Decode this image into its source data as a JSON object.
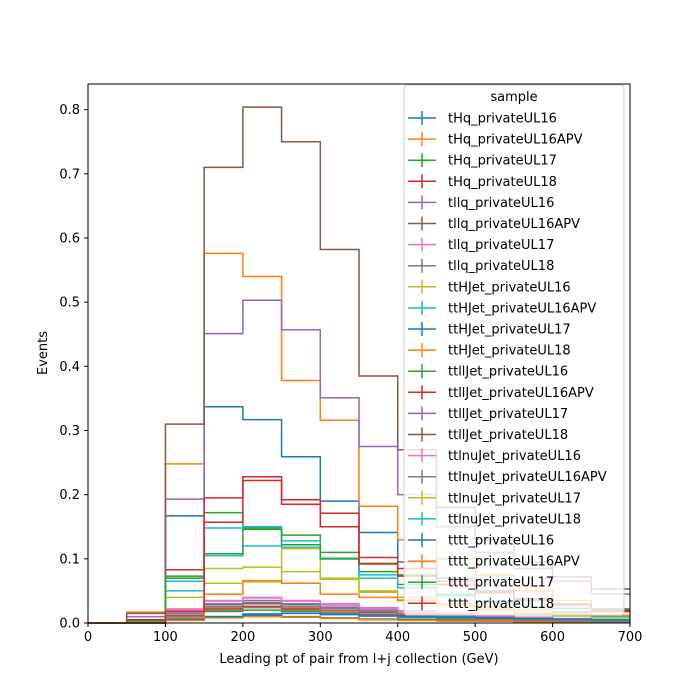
{
  "chart_data": {
    "type": "histogram-step",
    "title": "",
    "xlabel": "Leading pt of pair from l+j collection (GeV)",
    "ylabel": "Events",
    "xlim": [
      0,
      700
    ],
    "ylim": [
      0,
      0.84
    ],
    "xticks": [
      0,
      100,
      200,
      300,
      400,
      500,
      600,
      700
    ],
    "yticks": [
      0.0,
      0.1,
      0.2,
      0.3,
      0.4,
      0.5,
      0.6,
      0.7,
      0.8
    ],
    "bin_edges": [
      0,
      50,
      100,
      150,
      200,
      250,
      300,
      350,
      400,
      450,
      500,
      550,
      600,
      650,
      700
    ],
    "legend": {
      "title": "sample",
      "placement": "upper-right"
    },
    "grid": false,
    "series": [
      {
        "name": "tHq_privateUL16",
        "color": "#1f77b4",
        "values": [
          0,
          0,
          0.005,
          0.01,
          0.012,
          0.01,
          0.008,
          0.006,
          0.005,
          0.004,
          0.003,
          0.002,
          0.002,
          0.001
        ]
      },
      {
        "name": "tHq_privateUL16APV",
        "color": "#ff7f0e",
        "values": [
          0,
          0,
          0.004,
          0.008,
          0.01,
          0.009,
          0.007,
          0.005,
          0.004,
          0.003,
          0.003,
          0.002,
          0.001,
          0.001
        ]
      },
      {
        "name": "tHq_privateUL17",
        "color": "#2ca02c",
        "values": [
          0,
          0,
          0.01,
          0.018,
          0.02,
          0.018,
          0.014,
          0.011,
          0.008,
          0.006,
          0.005,
          0.004,
          0.003,
          0.002
        ]
      },
      {
        "name": "tHq_privateUL18",
        "color": "#d62728",
        "values": [
          0,
          0,
          0.012,
          0.022,
          0.026,
          0.022,
          0.017,
          0.013,
          0.01,
          0.008,
          0.006,
          0.004,
          0.003,
          0.002
        ]
      },
      {
        "name": "tllq_privateUL16",
        "color": "#9467bd",
        "values": [
          0,
          0,
          0.015,
          0.03,
          0.035,
          0.03,
          0.025,
          0.02,
          0.015,
          0.012,
          0.01,
          0.008,
          0.005,
          0.004
        ]
      },
      {
        "name": "tllq_privateUL16APV",
        "color": "#8c564b",
        "values": [
          0,
          0,
          0.012,
          0.025,
          0.03,
          0.025,
          0.02,
          0.016,
          0.012,
          0.01,
          0.008,
          0.006,
          0.004,
          0.003
        ]
      },
      {
        "name": "tllq_privateUL17",
        "color": "#e377c2",
        "values": [
          0,
          0,
          0.02,
          0.035,
          0.04,
          0.034,
          0.028,
          0.022,
          0.017,
          0.013,
          0.011,
          0.008,
          0.006,
          0.004
        ]
      },
      {
        "name": "tllq_privateUL18",
        "color": "#7f7f7f",
        "values": [
          0,
          0,
          0.01,
          0.02,
          0.024,
          0.02,
          0.016,
          0.012,
          0.009,
          0.007,
          0.005,
          0.004,
          0.003,
          0.002
        ]
      },
      {
        "name": "ttHJet_privateUL16",
        "color": "#bcbd22",
        "values": [
          0,
          0,
          0.07,
          0.085,
          0.087,
          0.08,
          0.068,
          0.05,
          0.04,
          0.03,
          0.022,
          0.016,
          0.012,
          0.008
        ]
      },
      {
        "name": "ttHJet_privateUL16APV",
        "color": "#17becf",
        "values": [
          0,
          0,
          0.065,
          0.105,
          0.12,
          0.118,
          0.1,
          0.07,
          0.055,
          0.042,
          0.032,
          0.024,
          0.016,
          0.01
        ]
      },
      {
        "name": "ttHJet_privateUL17",
        "color": "#1f77b4",
        "values": [
          0,
          0.005,
          0.167,
          0.337,
          0.317,
          0.259,
          0.19,
          0.141,
          0.095,
          0.07,
          0.05,
          0.035,
          0.023,
          0.018
        ]
      },
      {
        "name": "ttHJet_privateUL18",
        "color": "#ff7f0e",
        "values": [
          0,
          0.017,
          0.248,
          0.576,
          0.54,
          0.378,
          0.316,
          0.182,
          0.13,
          0.1,
          0.075,
          0.05,
          0.035,
          0.02
        ]
      },
      {
        "name": "ttllJet_privateUL16",
        "color": "#2ca02c",
        "values": [
          0,
          0.003,
          0.07,
          0.172,
          0.148,
          0.137,
          0.11,
          0.08,
          0.06,
          0.045,
          0.034,
          0.025,
          0.018,
          0.012
        ]
      },
      {
        "name": "ttllJet_privateUL16APV",
        "color": "#d62728",
        "values": [
          0,
          0.005,
          0.083,
          0.157,
          0.228,
          0.192,
          0.171,
          0.102,
          0.085,
          0.065,
          0.05,
          0.038,
          0.028,
          0.018
        ]
      },
      {
        "name": "ttllJet_privateUL17",
        "color": "#9467bd",
        "values": [
          0,
          0.01,
          0.193,
          0.451,
          0.503,
          0.457,
          0.351,
          0.275,
          0.2,
          0.15,
          0.11,
          0.085,
          0.065,
          0.045
        ]
      },
      {
        "name": "ttllJet_privateUL18",
        "color": "#8c564b",
        "values": [
          0,
          0.015,
          0.31,
          0.71,
          0.804,
          0.75,
          0.582,
          0.385,
          0.27,
          0.18,
          0.13,
          0.095,
          0.072,
          0.053
        ]
      },
      {
        "name": "ttlnuJet_privateUL16",
        "color": "#e377c2",
        "values": [
          0,
          0,
          0.022,
          0.034,
          0.039,
          0.035,
          0.03,
          0.024,
          0.019,
          0.015,
          0.012,
          0.009,
          0.007,
          0.005
        ]
      },
      {
        "name": "ttlnuJet_privateUL16APV",
        "color": "#7f7f7f",
        "values": [
          0,
          0,
          0.018,
          0.028,
          0.032,
          0.028,
          0.023,
          0.018,
          0.014,
          0.011,
          0.009,
          0.007,
          0.005,
          0.004
        ]
      },
      {
        "name": "ttlnuJet_privateUL17",
        "color": "#bcbd22",
        "values": [
          0,
          0,
          0.04,
          0.062,
          0.064,
          0.116,
          0.07,
          0.048,
          0.036,
          0.027,
          0.02,
          0.015,
          0.011,
          0.008
        ]
      },
      {
        "name": "ttlnuJet_privateUL18",
        "color": "#17becf",
        "values": [
          0,
          0,
          0.05,
          0.148,
          0.15,
          0.128,
          0.101,
          0.075,
          0.055,
          0.042,
          0.032,
          0.024,
          0.017,
          0.012
        ]
      },
      {
        "name": "tttt_privateUL16",
        "color": "#1f77b4",
        "values": [
          0,
          0,
          0.006,
          0.01,
          0.014,
          0.015,
          0.013,
          0.011,
          0.01,
          0.009,
          0.008,
          0.007,
          0.006,
          0.005
        ]
      },
      {
        "name": "tttt_privateUL16APV",
        "color": "#ff7f0e",
        "values": [
          0,
          0,
          0.008,
          0.045,
          0.066,
          0.062,
          0.045,
          0.04,
          0.035,
          0.03,
          0.025,
          0.02,
          0.015,
          0.012
        ]
      },
      {
        "name": "tttt_privateUL17",
        "color": "#2ca02c",
        "values": [
          0,
          0,
          0.073,
          0.108,
          0.146,
          0.122,
          0.1,
          0.093,
          0.075,
          0.06,
          0.048,
          0.038,
          0.03,
          0.022
        ]
      },
      {
        "name": "tttt_privateUL18",
        "color": "#d62728",
        "values": [
          0,
          0,
          0.018,
          0.195,
          0.222,
          0.185,
          0.15,
          0.092,
          0.073,
          0.06,
          0.047,
          0.037,
          0.028,
          0.02
        ]
      }
    ]
  }
}
